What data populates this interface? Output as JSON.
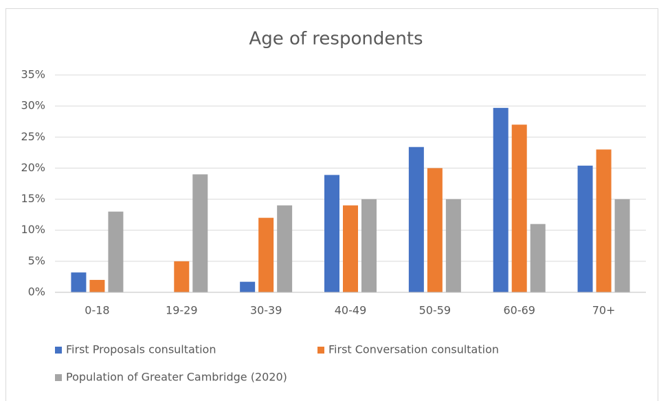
{
  "chart_data": {
    "type": "bar",
    "title": "Age of respondents",
    "categories": [
      "0-18",
      "19-29",
      "30-39",
      "40-49",
      "50-59",
      "60-69",
      "70+"
    ],
    "series": [
      {
        "name": "First Proposals consultation",
        "color": "#4472c4",
        "values": [
          3.2,
          null,
          1.7,
          18.9,
          23.4,
          29.7,
          20.4
        ]
      },
      {
        "name": "First Conversation consultation",
        "color": "#ed7d31",
        "values": [
          2,
          5,
          12,
          14,
          20,
          27,
          23
        ]
      },
      {
        "name": "Population of Greater Cambridge (2020)",
        "color": "#a5a5a5",
        "values": [
          13,
          19,
          14,
          15,
          15,
          11,
          15
        ]
      }
    ],
    "ylim": [
      0,
      35
    ],
    "yticks": [
      {
        "value": 0,
        "label": "0%"
      },
      {
        "value": 5,
        "label": "5%"
      },
      {
        "value": 10,
        "label": "10%"
      },
      {
        "value": 15,
        "label": "15%"
      },
      {
        "value": 20,
        "label": "20%"
      },
      {
        "value": 25,
        "label": "25%"
      },
      {
        "value": 30,
        "label": "30%"
      },
      {
        "value": 35,
        "label": "35%"
      }
    ],
    "grid": true,
    "legend": "bottom"
  }
}
